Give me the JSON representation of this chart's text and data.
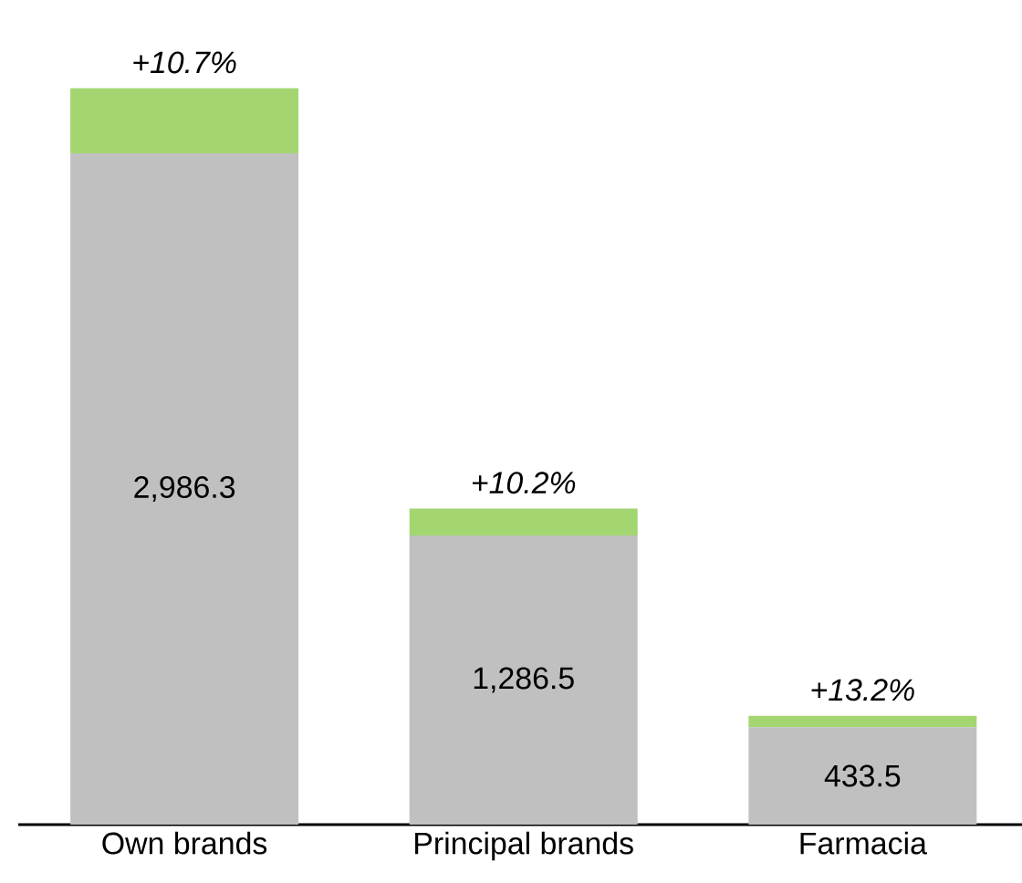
{
  "chart_data": {
    "type": "bar",
    "stacked": true,
    "categories": [
      "Own brands",
      "Principal brands",
      "Farmacia"
    ],
    "series": [
      {
        "color": "#c0c0c0",
        "values": [
          2986.3,
          1286.5,
          433.5
        ],
        "value_labels": [
          "2,986.3",
          "1,286.5",
          "433.5"
        ]
      },
      {
        "color": "#a3d670",
        "values": [
          288.7,
          119.1,
          50.6
        ]
      }
    ],
    "annotations": [
      {
        "text": "+10.7%",
        "x": "Own brands",
        "y": 3275.0
      },
      {
        "text": "+10.2%",
        "x": "Principal brands",
        "y": 1405.6
      },
      {
        "text": "+13.2%",
        "x": "Farmacia",
        "y": 484.1
      }
    ]
  }
}
